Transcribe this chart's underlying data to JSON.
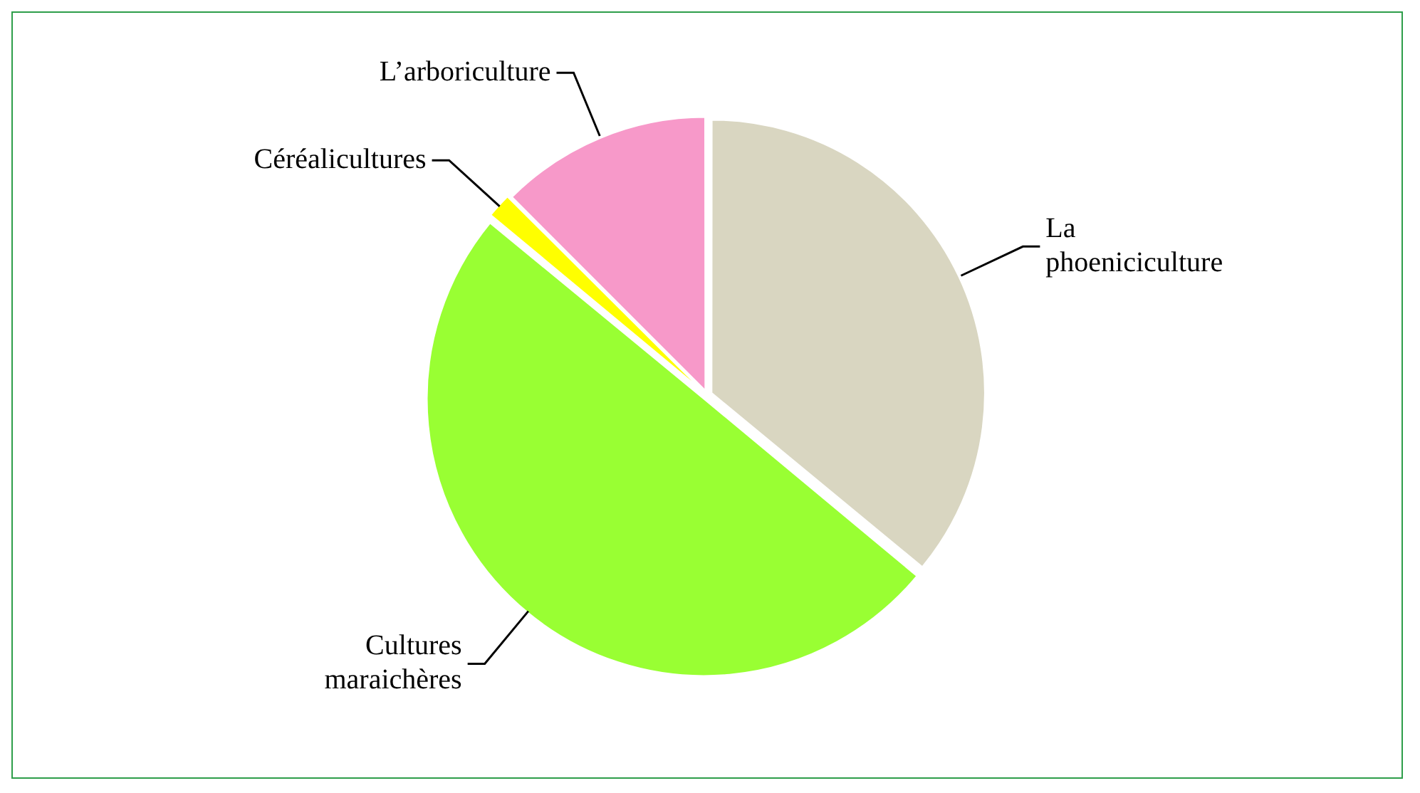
{
  "chart_data": {
    "type": "pie",
    "categories": [
      "La phoeniciculture",
      "Cultures maraichères",
      "Céréalicultures",
      "L’arboriculture"
    ],
    "values": [
      36,
      50,
      1.5,
      12.5
    ],
    "colors": [
      "#d9d6c1",
      "#99ff33",
      "#ffff00",
      "#f799c9"
    ],
    "legend": false
  }
}
